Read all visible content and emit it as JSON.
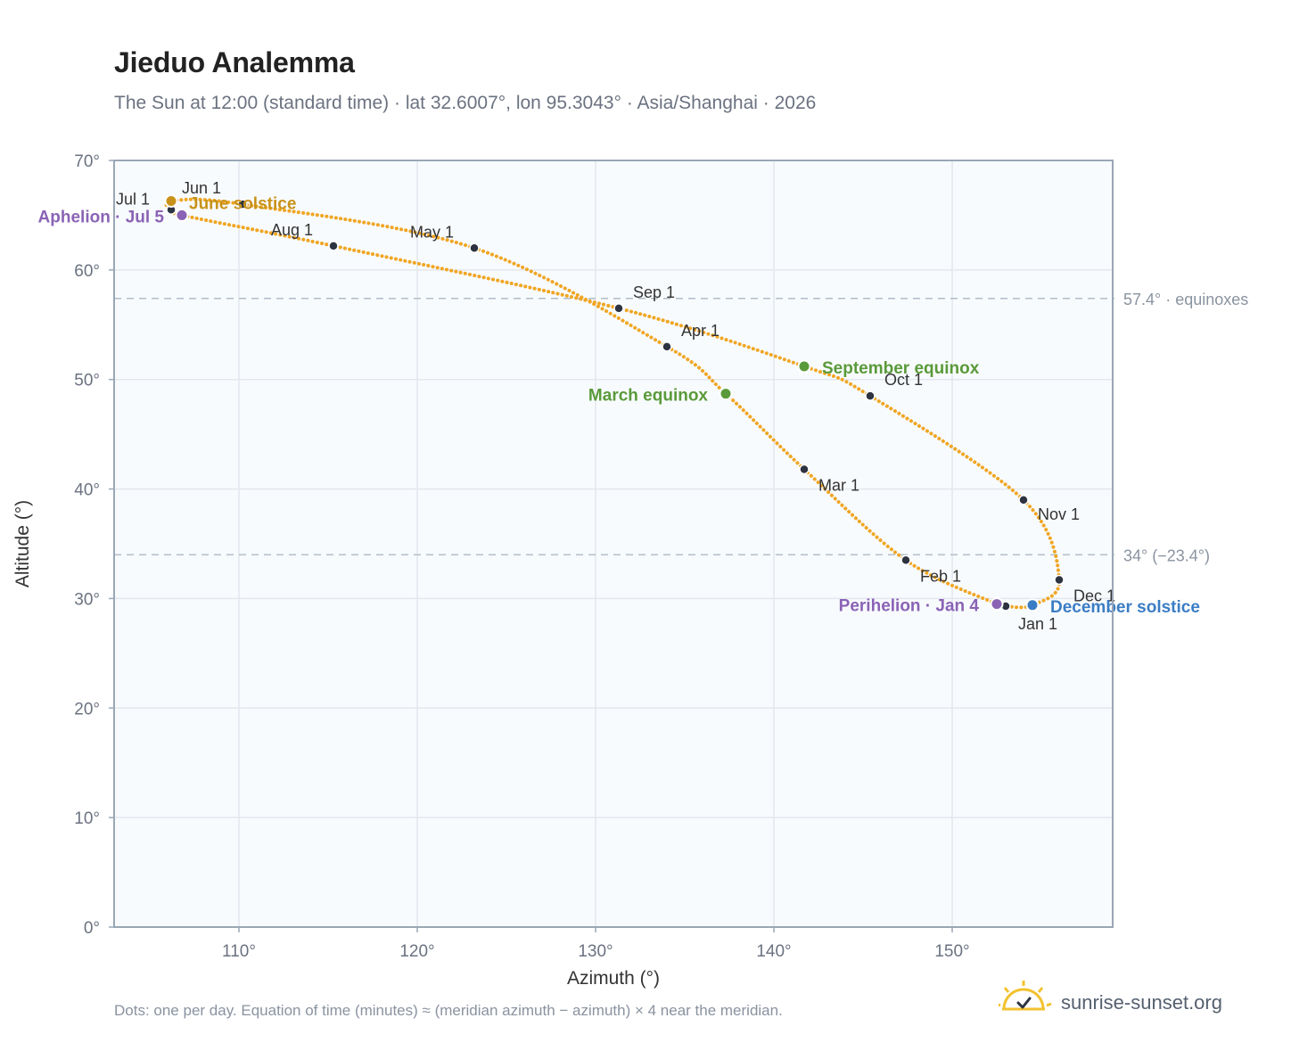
{
  "header": {
    "title": "Jieduo Analemma",
    "subtitle": "The Sun at 12:00 (standard time) · lat 32.6007°, lon 95.3043° · Asia/Shanghai · 2026"
  },
  "footer": {
    "note": "Dots: one per day. Equation of time (minutes) ≈ (meridian azimuth − azimuth) × 4 near the meridian.",
    "brand": "sunrise-sunset.org"
  },
  "chart_data": {
    "type": "scatter",
    "xlabel": "Azimuth (°)",
    "ylabel": "Altitude (°)",
    "xlim": [
      103,
      159
    ],
    "ylim": [
      0,
      70
    ],
    "x_ticks": [
      110,
      120,
      130,
      140,
      150
    ],
    "x_tick_labels": [
      "110°",
      "120°",
      "130°",
      "140°",
      "150°"
    ],
    "y_ticks": [
      0,
      10,
      20,
      30,
      40,
      50,
      60,
      70
    ],
    "y_tick_labels": [
      "0°",
      "10°",
      "20°",
      "30°",
      "40°",
      "50°",
      "60°",
      "70°"
    ],
    "grid": true,
    "colors": {
      "path": "#f0a623",
      "month_marker": "#2d3340",
      "solstice_june": "#c8921a",
      "solstice_december": "#3b7dc4",
      "equinox": "#5a9a3a",
      "apsis": "#8a63b5",
      "reference_line": "#b5c1cc",
      "plot_background": "#f8fbfe",
      "grid": "#e3e8ee",
      "frame": "#9aa7b5"
    },
    "path_points": [
      {
        "date": "Jan 1",
        "x": 153.0,
        "y": 29.3
      },
      {
        "date": "Jan 4",
        "x": 152.5,
        "y": 29.5
      },
      {
        "date": "Feb 1",
        "x": 147.4,
        "y": 33.5
      },
      {
        "date": "Mar 1",
        "x": 141.7,
        "y": 41.8
      },
      {
        "date": "Mar 20",
        "x": 137.3,
        "y": 48.7
      },
      {
        "date": "Apr 1",
        "x": 134.0,
        "y": 53.0
      },
      {
        "date": "May 1",
        "x": 123.2,
        "y": 62.0
      },
      {
        "date": "Jun 1",
        "x": 110.2,
        "y": 66.0
      },
      {
        "date": "Jun 21",
        "x": 106.2,
        "y": 66.3
      },
      {
        "date": "Jul 1",
        "x": 106.2,
        "y": 65.5
      },
      {
        "date": "Jul 5",
        "x": 106.8,
        "y": 65.0
      },
      {
        "date": "Aug 1",
        "x": 115.3,
        "y": 62.2
      },
      {
        "date": "Sep 1",
        "x": 131.3,
        "y": 56.5
      },
      {
        "date": "Sep 23",
        "x": 141.7,
        "y": 51.2
      },
      {
        "date": "Oct 1",
        "x": 145.4,
        "y": 48.5
      },
      {
        "date": "Nov 1",
        "x": 154.0,
        "y": 39.0
      },
      {
        "date": "Dec 1",
        "x": 156.0,
        "y": 31.7
      },
      {
        "date": "Dec 21",
        "x": 154.5,
        "y": 29.4
      }
    ],
    "month_markers": [
      {
        "label": "Jan 1",
        "x": 153.0,
        "y": 29.3
      },
      {
        "label": "Feb 1",
        "x": 147.4,
        "y": 33.5
      },
      {
        "label": "Mar 1",
        "x": 141.7,
        "y": 41.8
      },
      {
        "label": "Apr 1",
        "x": 134.0,
        "y": 53.0
      },
      {
        "label": "May 1",
        "x": 123.2,
        "y": 62.0
      },
      {
        "label": "Jun 1",
        "x": 110.2,
        "y": 66.0
      },
      {
        "label": "Jul 1",
        "x": 106.2,
        "y": 65.5
      },
      {
        "label": "Aug 1",
        "x": 115.3,
        "y": 62.2
      },
      {
        "label": "Sep 1",
        "x": 131.3,
        "y": 56.5
      },
      {
        "label": "Oct 1",
        "x": 145.4,
        "y": 48.5
      },
      {
        "label": "Nov 1",
        "x": 154.0,
        "y": 39.0
      },
      {
        "label": "Dec 1",
        "x": 156.0,
        "y": 31.7
      }
    ],
    "events": [
      {
        "label": "June solstice",
        "x": 106.2,
        "y": 66.3,
        "kind": "solstice_june"
      },
      {
        "label": "December solstice",
        "x": 154.5,
        "y": 29.4,
        "kind": "solstice_december"
      },
      {
        "label": "March equinox",
        "x": 137.3,
        "y": 48.7,
        "kind": "equinox"
      },
      {
        "label": "September equinox",
        "x": 141.7,
        "y": 51.2,
        "kind": "equinox"
      },
      {
        "label": "Aphelion · Jul 5",
        "x": 106.8,
        "y": 65.0,
        "kind": "apsis"
      },
      {
        "label": "Perihelion · Jan 4",
        "x": 152.5,
        "y": 29.5,
        "kind": "apsis"
      }
    ],
    "reference_lines": [
      {
        "y": 57.4,
        "label": "57.4° · equinoxes"
      },
      {
        "y": 34.0,
        "label": "34° (−23.4°)"
      }
    ]
  }
}
